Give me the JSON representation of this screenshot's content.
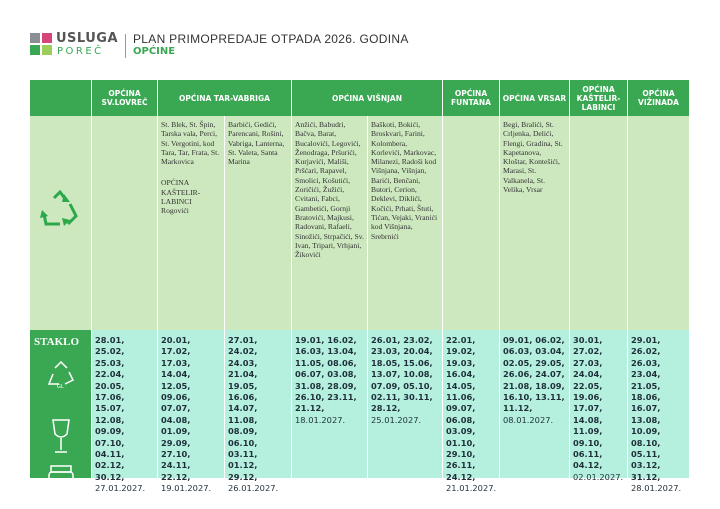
{
  "header": {
    "brand_top": "USLUGA",
    "brand_bottom": "POREČ",
    "title": "PLAN PRIMOPREDAJE OTPADA 2026. GODINA",
    "subtitle": "OPĆINE"
  },
  "table": {
    "staklo_label": "STAKLO",
    "glass_code": "GL",
    "groups": [
      {
        "name": "OPĆINA SV.LOVREČ",
        "columns": [
          {
            "dates": "28.01, 25.02, 25.03, 22.04, 20.05, 17.06, 15.07, 12.08, 09.09, 07.10, 04.11, 02.12, 30.12,",
            "last": "27.01.2027."
          }
        ]
      },
      {
        "name": "OPĆINA TAR-VABRIGA",
        "columns": [
          {
            "places": "St. Blek, St. Špin, Tarska vala, Perci, St. Vergotini, kod Tara, Tar, Frata, St. Markovica",
            "note_title": "OPĆINA KAŠTELIR-LABINCI",
            "note_places": "Rogovići",
            "dates": "20.01, 17.02, 17.03, 14.04, 12.05, 09.06, 07.07, 04.08, 01.09, 29.09, 27.10, 24.11, 22.12,",
            "last": "19.01.2027."
          },
          {
            "places": "Barbići, Gedići, Parencani, Rošini, Vabriga, Lanterna, St. Valeta, Santa Marina",
            "dates": "27.01, 24.02, 24.03, 21.04, 19.05, 16.06, 14.07, 11.08, 08.09, 06.10, 03.11, 01.12, 29.12,",
            "last": "26.01.2027."
          }
        ]
      },
      {
        "name": "OPĆINA VIŠNJAN",
        "columns": [
          {
            "places": "Anžići, Babudri, Bačva, Barat, Bucalovići, Legovići, Ženodraga, Pršurići, Kurjavići, Mališi, Pršćari, Rapavel, Smolici, Košutići, Zoričići, Žužići, Cvitani, Fabci, Gambetići, Gornji Bratovići, Majkusi, Radovani, Rafaeli, Sinožići, Strpačići, Sv. Ivan, Tripari, Vrhjani, Žikovići",
            "dates": "19.01, 16.02, 16.03, 13.04, 11.05, 08.06, 06.07, 03.08, 31.08, 28.09, 26.10, 23.11, 21.12,",
            "last": "18.01.2027."
          },
          {
            "places": "Baškoti, Bokići, Broskvari, Farini, Kolombera, Korlevići, Markovac, Milanezi, Radoši kod Višnjana, Višnjan, Barići, Benčani, Butori, Cerion, Deklevi, Diklići, Kočići, Prhati, Štuti, Tićan, Vejaki, Vranići kod Višnjana, Srebrnići",
            "dates": "26.01, 23.02, 23.03, 20.04, 18.05, 15.06, 13.07, 10.08, 07.09, 05.10, 02.11, 30.11, 28.12,",
            "last": "25.01.2027."
          }
        ]
      },
      {
        "name": "OPĆINA FUNTANA",
        "columns": [
          {
            "dates": "22.01, 19.02, 19.03, 16.04, 14.05, 11.06, 09.07, 06.08, 03.09, 01.10, 29.10, 26.11, 24.12,",
            "last": "21.01.2027."
          }
        ]
      },
      {
        "name": "OPĆINA VRSAR",
        "columns": [
          {
            "places": "Begi, Bralići, St. Crljenka, Delići, Flengi, Gradina, St. Kapetanova, Kloštar, Kontešići, Marasi, St. Valkanela, St. Velika, Vrsar",
            "dates": "09.01, 06.02, 06.03, 03.04, 02.05, 29.05, 26.06, 24.07, 21.08, 18.09, 16.10, 13.11, 11.12,",
            "last": "08.01.2027."
          }
        ]
      },
      {
        "name": "OPĆINA KAŠTELIR-LABINCI",
        "columns": [
          {
            "dates": "30.01, 27.02, 27.03, 24.04, 22.05, 19.06, 17.07, 14.08, 11.09, 09.10, 06.11, 04.12,",
            "last": "02.01.2027."
          }
        ]
      },
      {
        "name": "OPĆINA VIŽINADA",
        "columns": [
          {
            "dates": "29.01, 26.02, 26.03, 23.04, 21.05, 18.06, 16.07, 13.08, 10.09, 08.10, 05.11, 03.12, 31.12,",
            "last": "28.01.2027."
          }
        ]
      }
    ]
  }
}
